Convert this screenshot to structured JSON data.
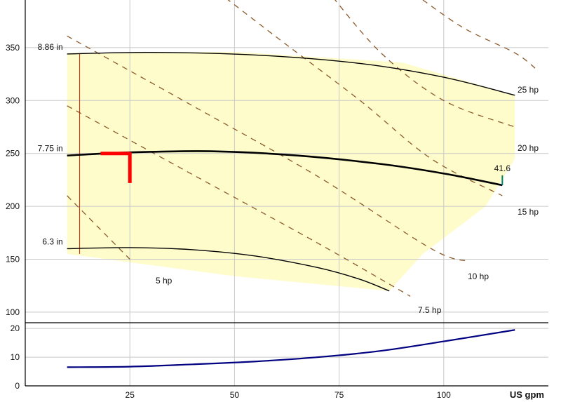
{
  "chart_data": {
    "type": "line",
    "x_unit_label": "US gpm",
    "xlim": [
      0,
      125
    ],
    "x_ticks": [
      25,
      50,
      75,
      100
    ],
    "head_panel": {
      "ylim": [
        90,
        395
      ],
      "y_ticks": [
        100,
        150,
        200,
        250,
        300,
        350
      ],
      "operating_region": {
        "color": "#fffccc",
        "points": [
          [
            10,
            345
          ],
          [
            50,
            346
          ],
          [
            90,
            336
          ],
          [
            117,
            305
          ],
          [
            117,
            245
          ],
          [
            110,
            200
          ],
          [
            95,
            155
          ],
          [
            87,
            120
          ],
          [
            50,
            134
          ],
          [
            10,
            155
          ]
        ]
      },
      "impeller_curves": [
        {
          "label": "8.86 in",
          "color": "#000000",
          "points": [
            [
              10,
              344
            ],
            [
              30,
              345.5
            ],
            [
              55,
              343
            ],
            [
              80,
              335
            ],
            [
              100,
              322
            ],
            [
              117,
              305
            ]
          ]
        },
        {
          "label": "7.75 in",
          "color": "#000000",
          "bold": true,
          "points": [
            [
              10,
              248
            ],
            [
              25,
              251
            ],
            [
              45,
              252
            ],
            [
              65,
              248
            ],
            [
              85,
              240
            ],
            [
              100,
              231
            ],
            [
              114,
              220
            ]
          ]
        },
        {
          "label": "6.3 in",
          "color": "#000000",
          "points": [
            [
              10,
              160
            ],
            [
              25,
              161
            ],
            [
              40,
              159
            ],
            [
              55,
              153
            ],
            [
              70,
              142
            ],
            [
              80,
              131
            ],
            [
              87,
              120
            ]
          ]
        }
      ],
      "power_lines": [
        {
          "label": "5 hp",
          "color": "#8b5a2b",
          "points": [
            [
              10,
              210
            ],
            [
              25,
              150
            ]
          ]
        },
        {
          "label": "7.5 hp",
          "color": "#8b5a2b",
          "points": [
            [
              10,
              295
            ],
            [
              40,
              230
            ],
            [
              70,
              165
            ],
            [
              92,
              115
            ]
          ]
        },
        {
          "label": "10 hp",
          "color": "#8b5a2b",
          "points": [
            [
              10,
              361
            ],
            [
              40,
              295
            ],
            [
              70,
              228
            ],
            [
              97,
              160
            ],
            [
              106,
              148
            ]
          ]
        },
        {
          "label": "15 hp",
          "color": "#8b5a2b",
          "points": [
            [
              42,
              415
            ],
            [
              60,
              360
            ],
            [
              80,
              300
            ],
            [
              97,
              245
            ],
            [
              114,
              210
            ]
          ]
        },
        {
          "label": "20 hp",
          "color": "#8b5a2b",
          "points": [
            [
              72,
              405
            ],
            [
              85,
              345
            ],
            [
              100,
              300
            ],
            [
              117,
              275
            ]
          ]
        },
        {
          "label": "25 hp",
          "color": "#8b5a2b",
          "points": [
            [
              95,
              395
            ],
            [
              105,
              368
            ],
            [
              117,
              345
            ],
            [
              122,
              330
            ]
          ]
        }
      ],
      "marker_point_label": "41.6",
      "marker_point": {
        "x": 114,
        "y": 220,
        "color": "#008060"
      },
      "operating_marker": {
        "color": "#ff0000",
        "x_from": 18,
        "x_to": 25,
        "y_top": 250,
        "y_bottom": 222
      },
      "min_flow_line": {
        "x": 13,
        "y_from": 155,
        "y_to": 344,
        "color": "#cc2200"
      }
    },
    "npsh_panel": {
      "ylim": [
        0,
        22
      ],
      "y_ticks": [
        0,
        10,
        20
      ],
      "series": [
        {
          "color": "#000080",
          "points": [
            [
              10,
              6.5
            ],
            [
              25,
              6.7
            ],
            [
              40,
              7.5
            ],
            [
              55,
              8.5
            ],
            [
              70,
              10
            ],
            [
              85,
              12.2
            ],
            [
              100,
              15.5
            ],
            [
              117,
              19.5
            ]
          ]
        }
      ]
    }
  }
}
